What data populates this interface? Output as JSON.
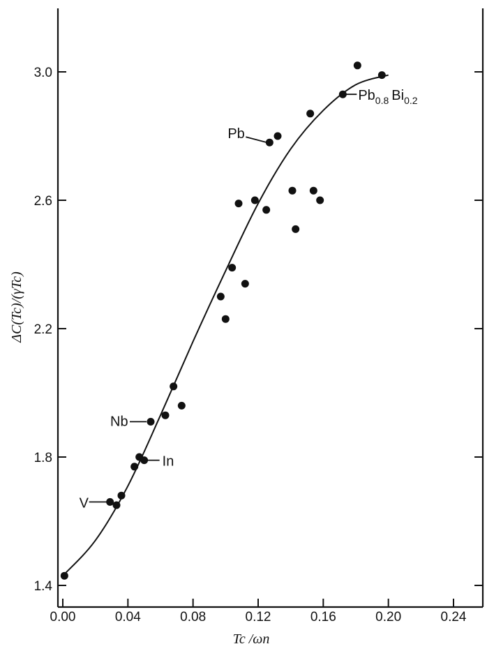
{
  "chart_data": {
    "type": "scatter",
    "title": "",
    "xlabel": "Tc /ωn",
    "ylabel": "ΔC(Tc)/(γTc)",
    "xlim": [
      0.0,
      0.26
    ],
    "ylim": [
      1.35,
      3.3
    ],
    "x_ticks": [
      0.0,
      0.04,
      0.08,
      0.12,
      0.16,
      0.2,
      0.24
    ],
    "x_tick_labels": [
      "0.00",
      "0.04",
      "0.08",
      "0.12",
      "0.16",
      "0.20",
      "0.24"
    ],
    "y_ticks": [
      1.4,
      1.8,
      2.2,
      2.6,
      3.0
    ],
    "y_tick_labels": [
      "1.4",
      "1.8",
      "2.2",
      "2.6",
      "3.0"
    ],
    "grid": false,
    "legend": "none",
    "series": [
      {
        "kind": "points",
        "x": [
          0.001,
          0.029,
          0.033,
          0.036,
          0.044,
          0.047,
          0.05,
          0.054,
          0.063,
          0.068,
          0.073,
          0.097,
          0.1,
          0.104,
          0.108,
          0.112,
          0.118,
          0.125,
          0.127,
          0.132,
          0.141,
          0.143,
          0.152,
          0.154,
          0.158,
          0.172,
          0.181,
          0.196
        ],
        "y": [
          1.43,
          1.66,
          1.65,
          1.68,
          1.77,
          1.8,
          1.79,
          1.91,
          1.93,
          2.02,
          1.96,
          2.3,
          2.23,
          2.39,
          2.59,
          2.34,
          2.6,
          2.57,
          2.78,
          2.8,
          2.63,
          2.51,
          2.87,
          2.63,
          2.6,
          2.93,
          3.02,
          2.99
        ]
      },
      {
        "kind": "curve",
        "x": [
          0.0,
          0.02,
          0.04,
          0.06,
          0.08,
          0.1,
          0.12,
          0.14,
          0.16,
          0.18,
          0.2
        ],
        "y": [
          1.43,
          1.54,
          1.71,
          1.93,
          2.16,
          2.38,
          2.59,
          2.76,
          2.88,
          2.96,
          2.99
        ]
      }
    ],
    "annotations": [
      {
        "text": "Nb",
        "x": 0.054,
        "y": 1.91
      },
      {
        "text": "In",
        "x": 0.05,
        "y": 1.79
      },
      {
        "text": "V",
        "x": 0.029,
        "y": 1.66
      },
      {
        "text": "Pb",
        "x": 0.127,
        "y": 2.78
      },
      {
        "text": "Pb0.8Bi0.2",
        "main": "Pb",
        "sub1": "0.8",
        "mid": "Bi",
        "sub2": "0.2",
        "x": 0.172,
        "y": 2.93
      }
    ]
  }
}
